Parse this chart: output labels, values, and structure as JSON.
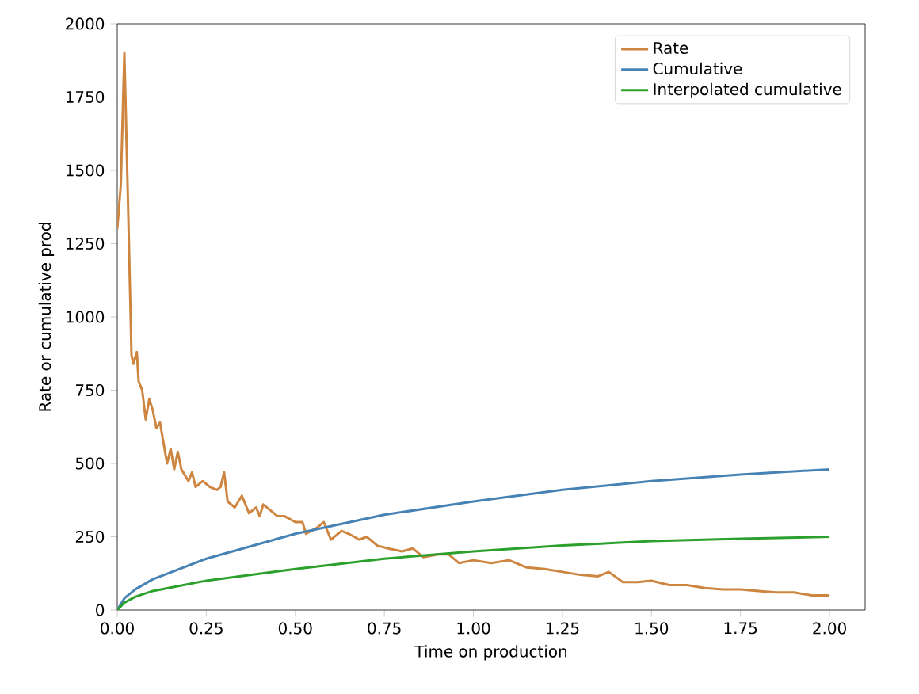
{
  "chart_data": {
    "type": "line",
    "xlabel": "Time on production",
    "ylabel": "Rate or cumulative prod",
    "xlim": [
      0,
      2.1
    ],
    "ylim": [
      0,
      2000
    ],
    "xticks": [
      {
        "value": 0,
        "label": "0.00"
      },
      0.25,
      {
        "value": 0.5,
        "label": "0.50"
      },
      0.75,
      {
        "value": 1,
        "label": "1.00"
      },
      1.25,
      {
        "value": 1.5,
        "label": "1.50"
      },
      1.75,
      {
        "value": 2,
        "label": "2.00"
      }
    ],
    "yticks": [
      0,
      250,
      500,
      750,
      1000,
      1250,
      1500,
      1750,
      2000
    ],
    "grid": false,
    "legend": "top right",
    "marker": "none",
    "line_style": "solid",
    "series": [
      {
        "name": "Rate",
        "color": "#cd853f",
        "x": [
          0,
          0.01,
          0.02,
          0.03,
          0.04,
          0.045,
          0.055,
          0.06,
          0.07,
          0.08,
          0.09,
          0.1,
          0.11,
          0.12,
          0.14,
          0.15,
          0.16,
          0.17,
          0.18,
          0.2,
          0.21,
          0.22,
          0.24,
          0.26,
          0.28,
          0.29,
          0.3,
          0.31,
          0.33,
          0.35,
          0.37,
          0.39,
          0.4,
          0.41,
          0.43,
          0.45,
          0.47,
          0.5,
          0.52,
          0.53,
          0.56,
          0.58,
          0.6,
          0.63,
          0.65,
          0.68,
          0.7,
          0.73,
          0.76,
          0.8,
          0.83,
          0.86,
          0.9,
          0.93,
          0.96,
          1.0,
          1.05,
          1.1,
          1.15,
          1.2,
          1.25,
          1.3,
          1.35,
          1.38,
          1.42,
          1.46,
          1.5,
          1.55,
          1.6,
          1.65,
          1.7,
          1.75,
          1.8,
          1.85,
          1.9,
          1.95,
          2.0
        ],
        "values": [
          1300,
          1450,
          1900,
          1400,
          870,
          840,
          880,
          780,
          750,
          650,
          720,
          680,
          620,
          640,
          500,
          550,
          480,
          540,
          480,
          440,
          470,
          420,
          440,
          420,
          410,
          420,
          470,
          370,
          350,
          390,
          330,
          350,
          320,
          360,
          340,
          320,
          320,
          300,
          300,
          260,
          280,
          300,
          240,
          270,
          260,
          240,
          250,
          220,
          210,
          200,
          210,
          180,
          190,
          190,
          160,
          170,
          160,
          170,
          145,
          140,
          130,
          120,
          115,
          130,
          95,
          95,
          100,
          85,
          85,
          75,
          70,
          70,
          65,
          60,
          60,
          50,
          50
        ]
      },
      {
        "name": "Cumulative",
        "color": "#4682b4",
        "x": [
          0,
          0.02,
          0.05,
          0.1,
          0.25,
          0.5,
          0.75,
          1.0,
          1.25,
          1.5,
          1.75,
          2.0
        ],
        "values": [
          0,
          40,
          70,
          105,
          175,
          260,
          325,
          370,
          410,
          440,
          462,
          480
        ]
      },
      {
        "name": "Interpolated cumulative",
        "color": "#2ca02c",
        "x": [
          0,
          0.02,
          0.05,
          0.1,
          0.25,
          0.5,
          0.75,
          1.0,
          1.25,
          1.5,
          1.75,
          2.0
        ],
        "values": [
          0,
          25,
          45,
          65,
          100,
          140,
          175,
          200,
          220,
          235,
          243,
          250
        ]
      }
    ]
  }
}
